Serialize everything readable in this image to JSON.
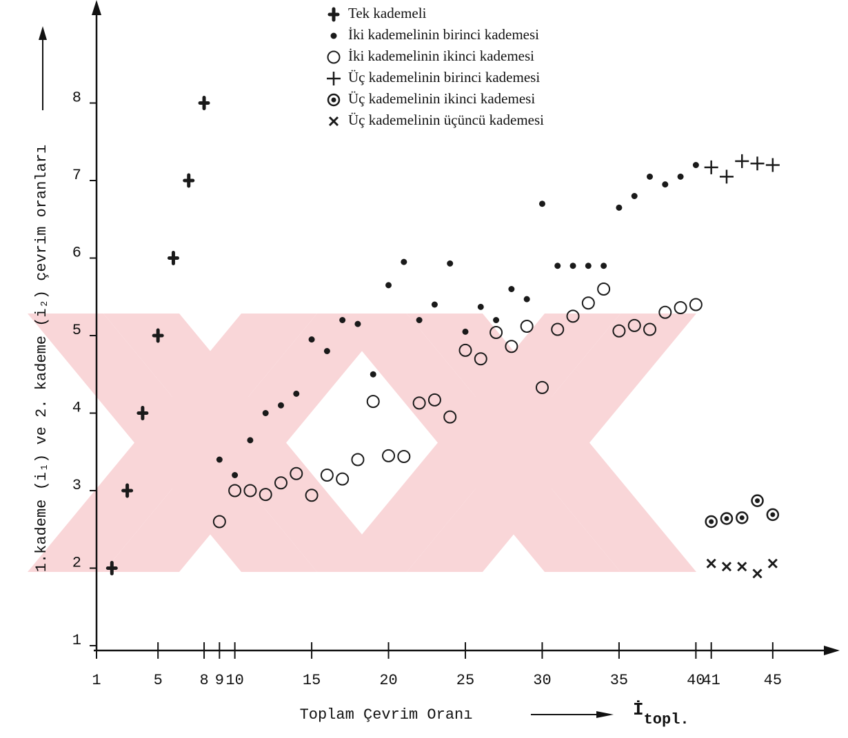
{
  "chart_data": {
    "type": "scatter",
    "x_label": "Toplam Çevrim Oranı",
    "x_symbol": {
      "main": "İ",
      "sub": "topl."
    },
    "y_label": "1.kademe (i₁) ve 2. kademe (i₂) çevrim oranları",
    "xlim": [
      1,
      49
    ],
    "ylim": [
      1,
      9.2
    ],
    "xticks": [
      1,
      5,
      8,
      9,
      10,
      15,
      20,
      25,
      30,
      35,
      40,
      41,
      45
    ],
    "yticks": [
      1,
      2,
      3,
      4,
      5,
      6,
      7,
      8
    ],
    "series": [
      {
        "name": "Tek kademeli",
        "marker": "quatrefoil",
        "color": "#1a1a1a",
        "x": [
          2,
          3,
          4,
          5,
          6,
          7,
          8
        ],
        "values": [
          2,
          3,
          4,
          5,
          6,
          7,
          8
        ]
      },
      {
        "name": "İki kademelinin birinci kademesi",
        "marker": "dot",
        "color": "#1a1a1a",
        "x": [
          9,
          10,
          11,
          12,
          13,
          14,
          15,
          16,
          17,
          18,
          19,
          20,
          21,
          22,
          23,
          24,
          25,
          26,
          27,
          28,
          29,
          30,
          31,
          32,
          33,
          34,
          35,
          36,
          37,
          38,
          39,
          40
        ],
        "values": [
          3.4,
          3.2,
          3.65,
          4.0,
          4.1,
          4.25,
          4.95,
          4.8,
          5.2,
          5.15,
          4.5,
          5.65,
          5.95,
          5.2,
          5.4,
          5.93,
          5.05,
          5.37,
          5.2,
          5.6,
          5.47,
          6.7,
          5.9,
          5.9,
          5.9,
          5.9,
          6.65,
          6.8,
          7.05,
          6.95,
          7.05,
          7.2
        ]
      },
      {
        "name": "İki kademelinin ikinci kademesi",
        "marker": "circle",
        "color": "#1a1a1a",
        "x": [
          9,
          10,
          11,
          12,
          13,
          14,
          15,
          16,
          17,
          18,
          19,
          20,
          21,
          22,
          23,
          24,
          25,
          26,
          27,
          28,
          29,
          30,
          31,
          32,
          33,
          34,
          35,
          36,
          37,
          38,
          39,
          40
        ],
        "values": [
          2.6,
          3.0,
          3.0,
          2.95,
          3.1,
          3.22,
          2.94,
          3.2,
          3.15,
          3.4,
          4.15,
          3.45,
          3.44,
          4.13,
          4.17,
          3.95,
          4.81,
          4.7,
          5.04,
          4.86,
          5.12,
          4.33,
          5.08,
          5.25,
          5.42,
          5.6,
          5.06,
          5.13,
          5.08,
          5.3,
          5.36,
          5.4
        ]
      },
      {
        "name": "Üç kademelinin birinci kademesi",
        "marker": "plus",
        "color": "#1a1a1a",
        "x": [
          41,
          42,
          43,
          44,
          45
        ],
        "values": [
          7.17,
          7.05,
          7.25,
          7.22,
          7.2
        ]
      },
      {
        "name": "Üç kademelinin ikinci kademesi",
        "marker": "circled-dot",
        "color": "#1a1a1a",
        "x": [
          41,
          42,
          43,
          44,
          45
        ],
        "values": [
          2.6,
          2.64,
          2.65,
          2.87,
          2.69
        ]
      },
      {
        "name": "Üç kademelinin üçüncü kademesi",
        "marker": "cross",
        "color": "#1a1a1a",
        "x": [
          41,
          42,
          43,
          44,
          45
        ],
        "values": [
          2.06,
          2.02,
          2.02,
          1.93,
          2.06
        ]
      }
    ]
  }
}
